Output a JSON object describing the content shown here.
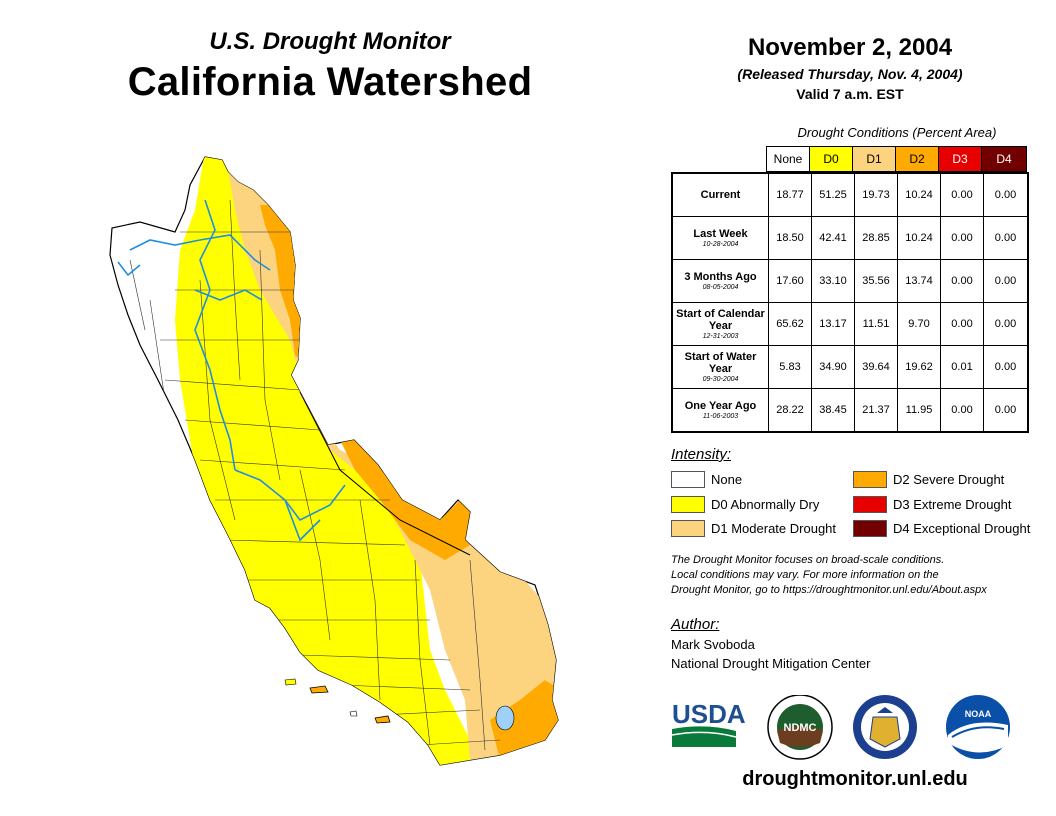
{
  "header": {
    "subtitle": "U.S. Drought Monitor",
    "title": "California Watershed",
    "map_date": "November 2, 2004",
    "released": "(Released Thursday, Nov. 4, 2004)",
    "valid": "Valid 7 a.m. EST"
  },
  "table": {
    "caption": "Drought Conditions (Percent Area)",
    "columns": [
      "None",
      "D0",
      "D1",
      "D2",
      "D3",
      "D4"
    ],
    "column_colors": [
      "#ffffff",
      "#ffff00",
      "#fcd37f",
      "#ffaa00",
      "#e60000",
      "#730000"
    ],
    "rows": [
      {
        "label": "Current",
        "date": "",
        "values": [
          "18.77",
          "51.25",
          "19.73",
          "10.24",
          "0.00",
          "0.00"
        ]
      },
      {
        "label": "Last Week",
        "date": "10-28-2004",
        "values": [
          "18.50",
          "42.41",
          "28.85",
          "10.24",
          "0.00",
          "0.00"
        ]
      },
      {
        "label": "3 Months Ago",
        "date": "08-05-2004",
        "values": [
          "17.60",
          "33.10",
          "35.56",
          "13.74",
          "0.00",
          "0.00"
        ]
      },
      {
        "label": "Start of Calendar Year",
        "date": "12-31-2003",
        "values": [
          "65.62",
          "13.17",
          "11.51",
          "9.70",
          "0.00",
          "0.00"
        ]
      },
      {
        "label": "Start of Water Year",
        "date": "09-30-2004",
        "values": [
          "5.83",
          "34.90",
          "39.64",
          "19.62",
          "0.01",
          "0.00"
        ]
      },
      {
        "label": "One Year Ago",
        "date": "11-06-2003",
        "values": [
          "28.22",
          "38.45",
          "21.37",
          "11.95",
          "0.00",
          "0.00"
        ]
      }
    ]
  },
  "legend": {
    "title": "Intensity:",
    "items": [
      {
        "label": "None",
        "color": "#ffffff"
      },
      {
        "label": "D0 Abnormally Dry",
        "color": "#ffff00"
      },
      {
        "label": "D1 Moderate Drought",
        "color": "#fcd37f"
      },
      {
        "label": "D2 Severe Drought",
        "color": "#ffaa00"
      },
      {
        "label": "D3 Extreme Drought",
        "color": "#e60000"
      },
      {
        "label": "D4 Exceptional Drought",
        "color": "#730000"
      }
    ]
  },
  "disclaimer": {
    "line1": "The Drought Monitor focuses on broad-scale conditions.",
    "line2": "Local conditions may vary. For more information on the",
    "line3": "Drought Monitor, go to https://droughtmonitor.unl.edu/About.aspx"
  },
  "author": {
    "label": "Author:",
    "name": "Mark Svoboda",
    "org": "National Drought Mitigation Center"
  },
  "logos": {
    "usda": "USDA",
    "ndmc": "NDMC",
    "noaa": "NOAA"
  },
  "website": "droughtmonitor.unl.edu"
}
